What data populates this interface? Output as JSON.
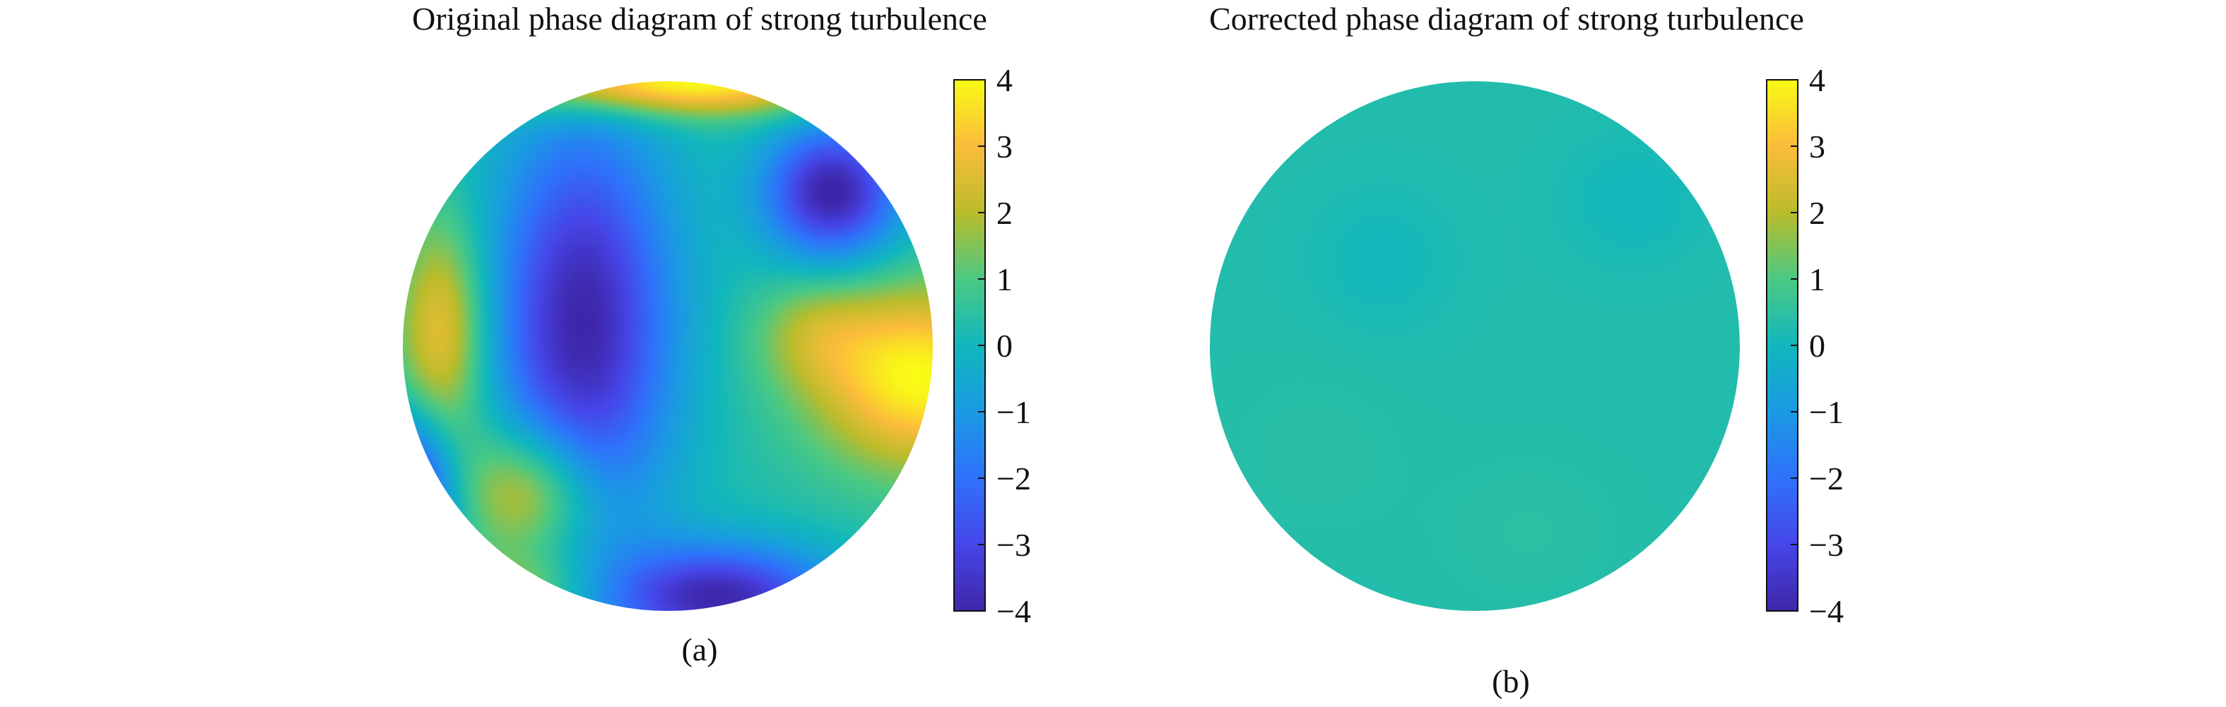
{
  "chart_data": [
    {
      "type": "heatmap",
      "panel_label": "(a)",
      "title": "Original phase diagram of strong turbulence",
      "xlabel": "",
      "ylabel": "",
      "colorbar": {
        "range": [
          -4,
          4
        ],
        "ticks": [
          4,
          3,
          2,
          1,
          0,
          -1,
          -2,
          -3,
          -4
        ],
        "tick_labels": [
          "4",
          "3",
          "2",
          "1",
          "0",
          "−1",
          "−2",
          "−3",
          "−4"
        ],
        "colormap": "parula"
      },
      "aperture": "circular",
      "field": {
        "base": 0.3,
        "features": [
          {
            "x": -0.32,
            "y": 0.08,
            "sx": 0.24,
            "sy": 0.55,
            "amp": -4.3
          },
          {
            "x": 0.62,
            "y": 0.58,
            "sx": 0.18,
            "sy": 0.18,
            "amp": -4.4
          },
          {
            "x": 0.2,
            "y": -0.95,
            "sx": 0.3,
            "sy": 0.14,
            "amp": -4.2
          },
          {
            "x": -0.98,
            "y": -0.55,
            "sx": 0.12,
            "sy": 0.2,
            "amp": -4.2
          },
          {
            "x": 0.95,
            "y": -0.12,
            "sx": 0.28,
            "sy": 0.24,
            "amp": 3.7
          },
          {
            "x": -0.52,
            "y": -0.55,
            "sx": 0.18,
            "sy": 0.18,
            "amp": 2.8
          },
          {
            "x": -0.85,
            "y": 0.05,
            "sx": 0.12,
            "sy": 0.3,
            "amp": 2.6
          },
          {
            "x": 0.0,
            "y": 1.0,
            "sx": 0.5,
            "sy": 0.09,
            "amp": 4.0
          },
          {
            "x": 0.55,
            "y": 0.05,
            "sx": 0.16,
            "sy": 0.15,
            "amp": 1.2
          },
          {
            "x": -0.55,
            "y": -0.92,
            "sx": 0.2,
            "sy": 0.1,
            "amp": 1.5
          }
        ]
      }
    },
    {
      "type": "heatmap",
      "panel_label": "(b)",
      "title": "Corrected phase diagram of strong turbulence",
      "xlabel": "",
      "ylabel": "",
      "colorbar": {
        "range": [
          -4,
          4
        ],
        "ticks": [
          4,
          3,
          2,
          1,
          0,
          -1,
          -2,
          -3,
          -4
        ],
        "tick_labels": [
          "4",
          "3",
          "2",
          "1",
          "0",
          "−1",
          "−2",
          "−3",
          "−4"
        ],
        "colormap": "parula"
      },
      "aperture": "circular",
      "field": {
        "base": 0.3,
        "features": [
          {
            "x": -0.35,
            "y": 0.32,
            "sx": 0.2,
            "sy": 0.2,
            "amp": -0.28
          },
          {
            "x": 0.6,
            "y": 0.55,
            "sx": 0.2,
            "sy": 0.18,
            "amp": -0.3
          },
          {
            "x": 0.2,
            "y": -0.7,
            "sx": 0.25,
            "sy": 0.2,
            "amp": 0.15
          },
          {
            "x": -0.6,
            "y": -0.4,
            "sx": 0.25,
            "sy": 0.25,
            "amp": 0.12
          }
        ]
      }
    }
  ]
}
